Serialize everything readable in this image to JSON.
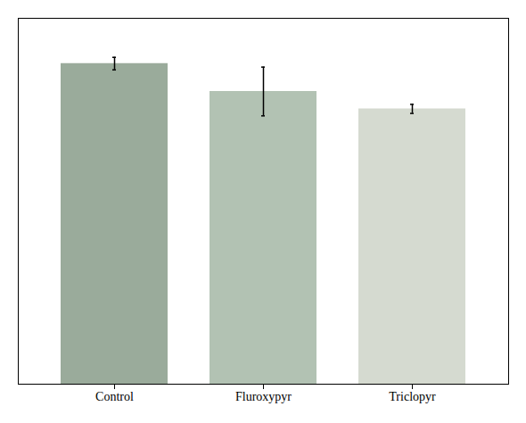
{
  "chart_data": {
    "type": "bar",
    "categories": [
      "Control",
      "Fluroxypyr",
      "Triclopyr"
    ],
    "values": [
      9.2,
      8.4,
      7.9
    ],
    "errors": [
      0.18,
      0.7,
      0.13
    ],
    "colors": [
      "#9aab9b",
      "#b2c2b3",
      "#d5dad0"
    ],
    "ylim": [
      0,
      10.5
    ],
    "grid": false,
    "tick_labels": "x"
  }
}
